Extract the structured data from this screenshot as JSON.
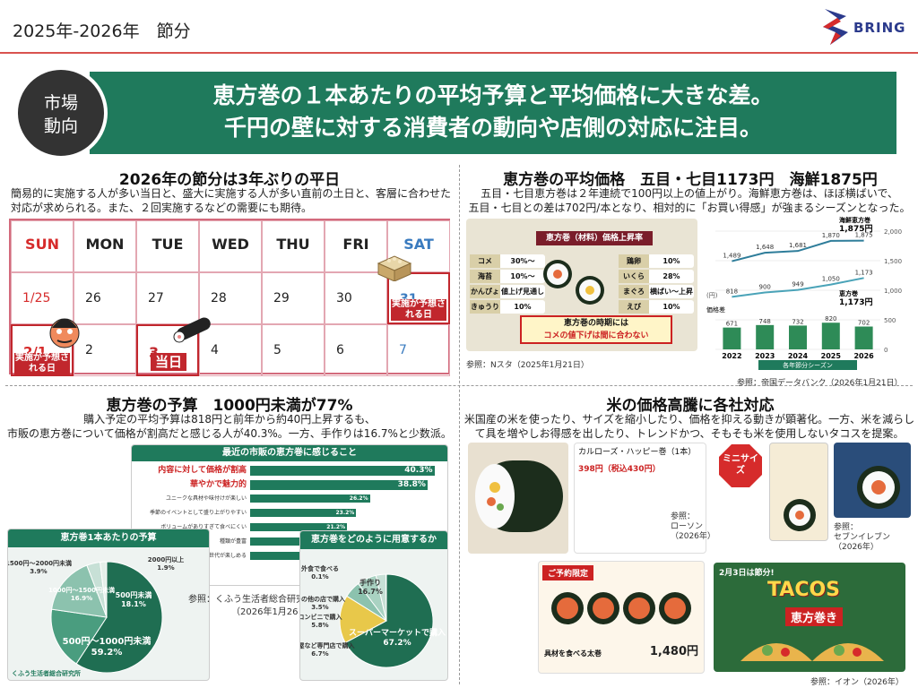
{
  "header": {
    "title": "2025年-2026年　節分",
    "brand": "BRING"
  },
  "banner": {
    "circle_line1": "市場",
    "circle_line2": "動向",
    "line1": "恵方巻の１本あたりの平均予算と平均価格に大きな差。",
    "line2": "千円の壁に対する消費者の動向や店側の対応に注目。"
  },
  "s1": {
    "title": "2026年の節分は3年ぶりの平日",
    "body1": "簡易的に実施する人が多い当日と、盛大に実施する人が多い直前の土日と、客層に合わせた",
    "body2": "対応が求められる。また、２回実施するなどの需要にも期待。"
  },
  "calendar": {
    "days": [
      "SUN",
      "MON",
      "TUE",
      "WED",
      "THU",
      "FRI",
      "SAT"
    ],
    "week1": [
      "1/25",
      "26",
      "27",
      "28",
      "29",
      "30",
      "31"
    ],
    "week2": [
      "2/1",
      "2",
      "3",
      "4",
      "5",
      "6",
      "7"
    ],
    "tag_a": "実施が予想される日",
    "tag_b": "当日"
  },
  "s2": {
    "title": "恵方巻の平均価格　五目・七目1173円　海鮮1875円",
    "body1": "五目・七目恵方巻は２年連続で100円以上の値上がり。海鮮恵方巻は、ほぼ横ばいで、",
    "body2": "五目・七目との差は702円/本となり、相対的に「お買い得感」が強まるシーズンとなった。",
    "tv_caption": "参照：Nスタ（2025年1月21日）",
    "tv_head": "恵方巻（材料）価格上昇率",
    "tv_items": [
      {
        "n": "コメ",
        "v": "30%～"
      },
      {
        "n": "海苔",
        "v": "10%～"
      },
      {
        "n": "かんぴょう",
        "v": "値上げ見通し"
      },
      {
        "n": "きゅうり",
        "v": "10%"
      },
      {
        "n": "鶏卵",
        "v": "10%"
      },
      {
        "n": "いくら",
        "v": "28%"
      },
      {
        "n": "まぐろ",
        "v": "横ばい～上昇"
      },
      {
        "n": "えび",
        "v": "10%"
      }
    ],
    "tv_note1": "恵方巻の時期には",
    "tv_note2": "コメの値下げは間に合わない",
    "chart_caption": "参照：帝国データバンク（2026年1月21日）"
  },
  "chart_data": {
    "type": "bar",
    "categories": [
      "2022",
      "2023",
      "2024",
      "2025",
      "2026"
    ],
    "series": [
      {
        "name": "価格差",
        "values": [
          671,
          748,
          732,
          820,
          702
        ]
      },
      {
        "name": "海鮮恵方巻",
        "values": [
          1489,
          1648,
          1681,
          1870,
          1875
        ]
      },
      {
        "name": "恵方巻（五目）",
        "values": [
          818,
          900,
          949,
          1050,
          1173
        ]
      }
    ],
    "labels": {
      "kaisen": "海鮮恵方巻",
      "kaisen_val": "1,875円",
      "gomoku": "恵方巻",
      "gomoku_val": "1,173円",
      "diff": "価格差",
      "xlabel": "各年節分シーズン",
      "yunit": "(円)",
      "ticks": [
        "2,000",
        "1,500",
        "1,000",
        "500",
        "0"
      ]
    }
  },
  "s3": {
    "title": "恵方巻の予算　1000円未満が77%",
    "body1": "購入予定の平均予算は818円と前年から約40円上昇するも、",
    "body2": "市販の恵方巻について価格が割高だと感じる人が40.3%。一方、手作りは16.7%と少数派。",
    "survey_title": "最近の市販の恵方巻に感じること",
    "survey": [
      {
        "l": "内容に対して価格が割高",
        "v": "40.3%",
        "p": 40.3
      },
      {
        "l": "華やかで魅力的",
        "v": "38.8%",
        "p": 38.8
      },
      {
        "l": "ユニークな具材や味付けが楽しい",
        "v": "26.2%",
        "p": 26.2
      },
      {
        "l": "季節のイベントとして盛り上がりやすい",
        "v": "23.2%",
        "p": 23.2
      },
      {
        "l": "ボリュームがありすぎて食べにくい",
        "v": "21.2%",
        "p": 21.2
      },
      {
        "l": "種類が豊富",
        "v": "18.2%",
        "p": 18.2
      },
      {
        "l": "子どもや若い世代が楽しめる",
        "v": "17.4%",
        "p": 17.4
      }
    ],
    "pie_title": "恵方巻1本あたりの予算",
    "pie": [
      {
        "l": "500円～1000円未満",
        "v": "59.2%"
      },
      {
        "l": "500円未満",
        "v": "18.1%"
      },
      {
        "l": "1000円～1500円未満",
        "v": "16.9%"
      },
      {
        "l": "1500円～2000円未満",
        "v": "3.9%"
      },
      {
        "l": "2000円以上",
        "v": "1.9%"
      }
    ],
    "caption": "参照：くふう生活者総合研究所",
    "caption_date": "（2026年1月26日）",
    "prep_title": "恵方巻をどのように用意するか",
    "prep": [
      {
        "l": "スーパーマーケットで購入",
        "v": "67.2%"
      },
      {
        "l": "手作り",
        "v": "16.7%"
      },
      {
        "l": "コンビニで購入",
        "v": "5.8%"
      },
      {
        "l": "すし屋など専門店で購入",
        "v": "6.7%"
      },
      {
        "l": "その他の店で購入",
        "v": "3.5%"
      },
      {
        "l": "外食で食べる",
        "v": "0.1%"
      }
    ],
    "brand": "くふう生活者総合研究所"
  },
  "s4": {
    "title": "米の価格高騰に各社対応",
    "body1": "米国産の米を使ったり、サイズを縮小したり、価格を抑える動きが顕著化。一方、米を減らし",
    "body2": "て具を増やしお得感を出したり、トレンドかつ、そもそも米を使用しないタコスを提案。",
    "lawson_name": "カルローズ・ハッピー巻（1本）",
    "lawson_price": "398円（税込430円）",
    "lawson_cap1": "参照：",
    "lawson_cap2": "ローソン",
    "lawson_cap3": "（2026年）",
    "mini": "ミニサイズ",
    "seven_cap1": "参照：",
    "seven_cap2": "セブンイレブン",
    "seven_cap3": "（2026年）",
    "aeon_tag": "ご予約限定",
    "aeon_price": "1,480円",
    "aeon_note": "具材を食べる太巻",
    "tacos": "TACOS",
    "tacos_sub": "恵方巻き",
    "tacos_date": "2月3日は節分!",
    "aeon_cap": "参照：イオン（2026年）"
  }
}
